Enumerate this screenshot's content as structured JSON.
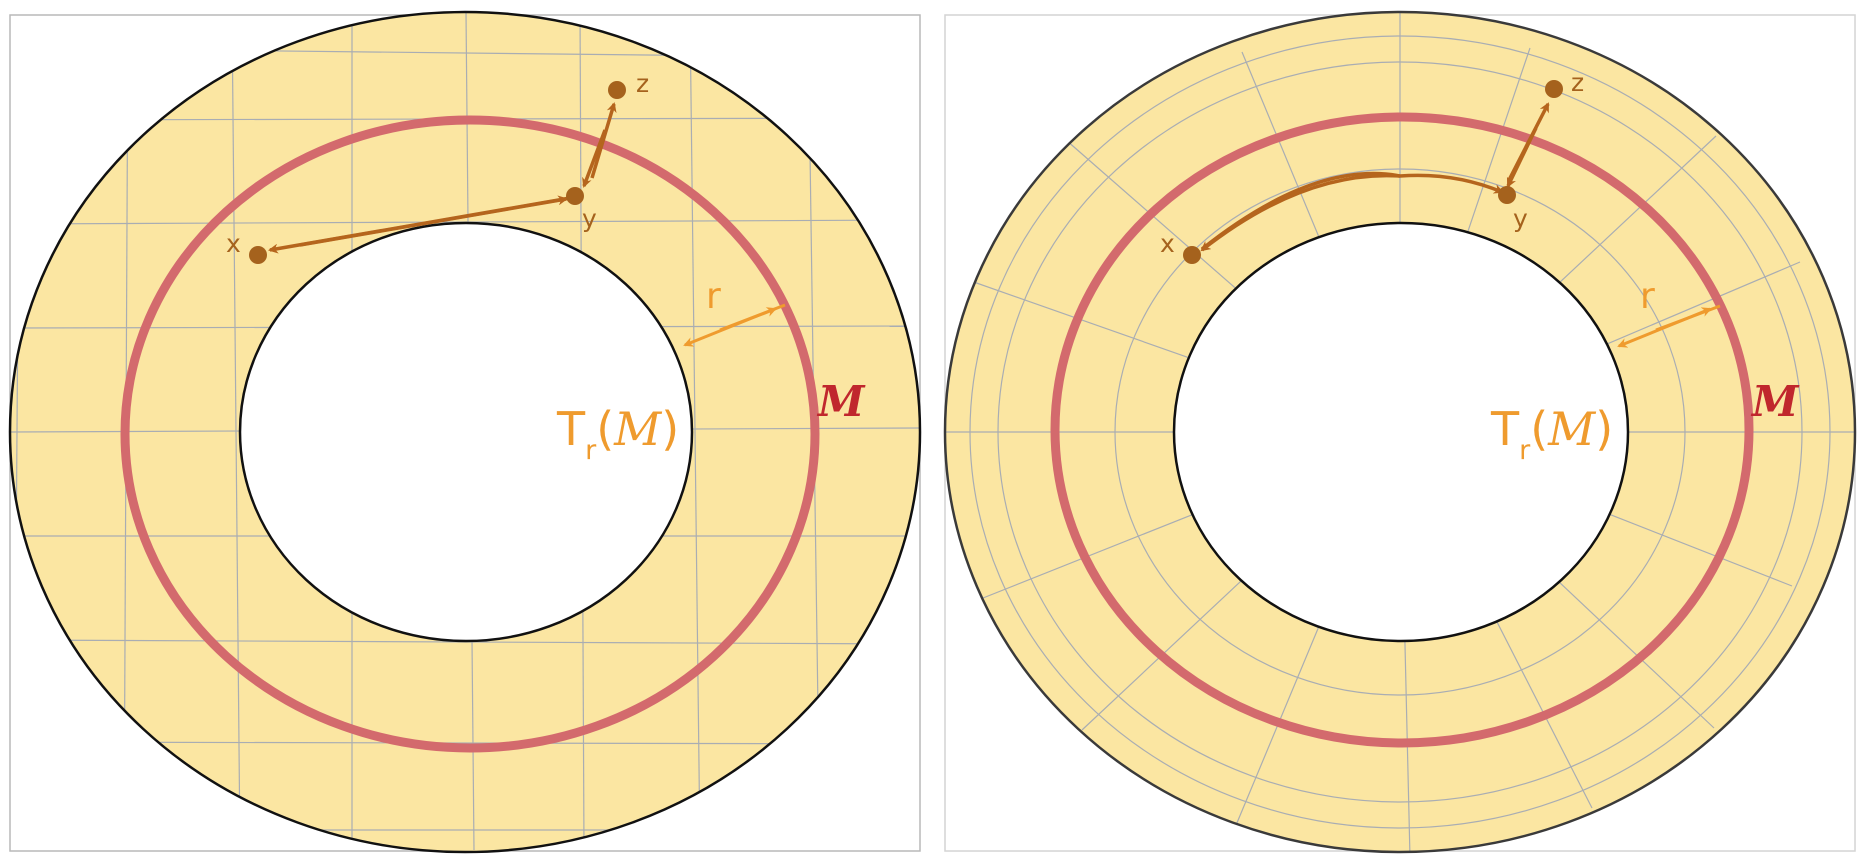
{
  "colors": {
    "annulus_fill": "#fbe6a2",
    "manifold_ring": "#d36a6d",
    "grid_line": "#a9adb3",
    "boundary": "#111111",
    "point": "#a5621d",
    "arrow": "#b5651d",
    "radius_arrow": "#ef9b2e",
    "manifold_label": "#c0272d"
  },
  "panels": [
    {
      "id": "euclidean",
      "grid": "cartesian",
      "points": {
        "x": "x",
        "y": "y",
        "z": "z"
      },
      "radius_label": "r",
      "tube_label": {
        "main": "T",
        "sub": "r",
        "arg_open": "(",
        "arg": "M",
        "arg_close": ")"
      },
      "manifold_label": "M"
    },
    {
      "id": "polar",
      "grid": "polar",
      "points": {
        "x": "x",
        "y": "y",
        "z": "z"
      },
      "radius_label": "r",
      "tube_label": {
        "main": "T",
        "sub": "r",
        "arg_open": "(",
        "arg": "M",
        "arg_close": ")"
      },
      "manifold_label": "M"
    }
  ]
}
